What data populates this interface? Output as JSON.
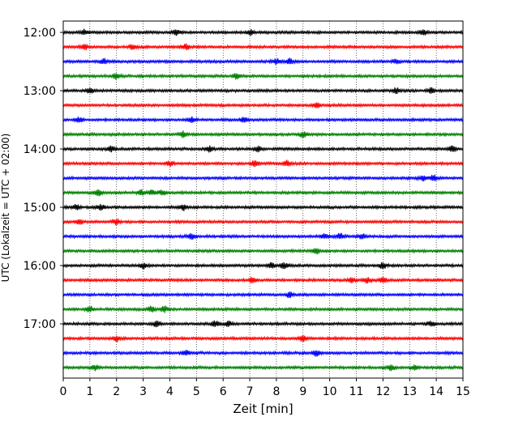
{
  "chart_data": {
    "type": "line",
    "xlabel": "Zeit  [min]",
    "ylabel": "UTC (Lokalzeit = UTC + 02:00)",
    "xlim": [
      0,
      15
    ],
    "x_ticks": [
      0,
      1,
      2,
      3,
      4,
      5,
      6,
      7,
      8,
      9,
      10,
      11,
      12,
      13,
      14,
      15
    ],
    "x_tick_labels": [
      "0",
      "1",
      "2",
      "3",
      "4",
      "5",
      "6",
      "7",
      "8",
      "9",
      "10",
      "11",
      "12",
      "13",
      "14",
      "15"
    ],
    "y_tick_labels": [
      "12:00",
      "13:00",
      "14:00",
      "15:00",
      "16:00",
      "17:00"
    ],
    "grid": "vertical dotted",
    "trace_colors": [
      "#000000",
      "#ff0000",
      "#0000ff",
      "#008000"
    ],
    "traces": [
      {
        "start": "12:00",
        "events": [
          4.25,
          0.8,
          7.0,
          13.5
        ]
      },
      {
        "start": "12:15",
        "events": [
          0.8,
          4.6,
          2.6
        ]
      },
      {
        "start": "12:30",
        "events": [
          8.0,
          8.5,
          1.5,
          12.5
        ]
      },
      {
        "start": "12:45",
        "events": [
          2.0,
          6.5
        ]
      },
      {
        "start": "13:00",
        "events": [
          1.0,
          12.5,
          13.8
        ]
      },
      {
        "start": "13:15",
        "events": [
          9.5
        ]
      },
      {
        "start": "13:30",
        "events": [
          6.8,
          0.6,
          4.8
        ]
      },
      {
        "start": "13:45",
        "events": [
          4.5,
          9.0
        ]
      },
      {
        "start": "14:00",
        "events": [
          5.5,
          7.3,
          14.6,
          1.8
        ]
      },
      {
        "start": "14:15",
        "events": [
          7.2,
          8.4,
          4.0
        ]
      },
      {
        "start": "14:30",
        "events": [
          13.5,
          13.9
        ]
      },
      {
        "start": "14:45",
        "events": [
          2.9,
          3.3,
          3.7,
          1.3
        ]
      },
      {
        "start": "15:00",
        "events": [
          0.5,
          1.4,
          4.5
        ]
      },
      {
        "start": "15:15",
        "events": [
          0.6,
          2.0
        ]
      },
      {
        "start": "15:30",
        "events": [
          4.8,
          9.8,
          10.4,
          11.2
        ]
      },
      {
        "start": "15:45",
        "events": [
          9.5
        ]
      },
      {
        "start": "16:00",
        "events": [
          7.8,
          8.3,
          3.0,
          12.0
        ]
      },
      {
        "start": "16:15",
        "events": [
          10.8,
          11.4,
          12.0,
          7.1
        ]
      },
      {
        "start": "16:30",
        "events": [
          8.5
        ]
      },
      {
        "start": "16:45",
        "events": [
          3.3,
          3.8,
          1.0
        ]
      },
      {
        "start": "17:00",
        "events": [
          5.7,
          6.2,
          13.8,
          3.5
        ]
      },
      {
        "start": "17:15",
        "events": [
          2.0,
          9.0
        ]
      },
      {
        "start": "17:30",
        "events": [
          9.5,
          4.6
        ]
      },
      {
        "start": "17:45",
        "events": [
          12.3,
          13.2,
          1.2
        ]
      }
    ]
  }
}
